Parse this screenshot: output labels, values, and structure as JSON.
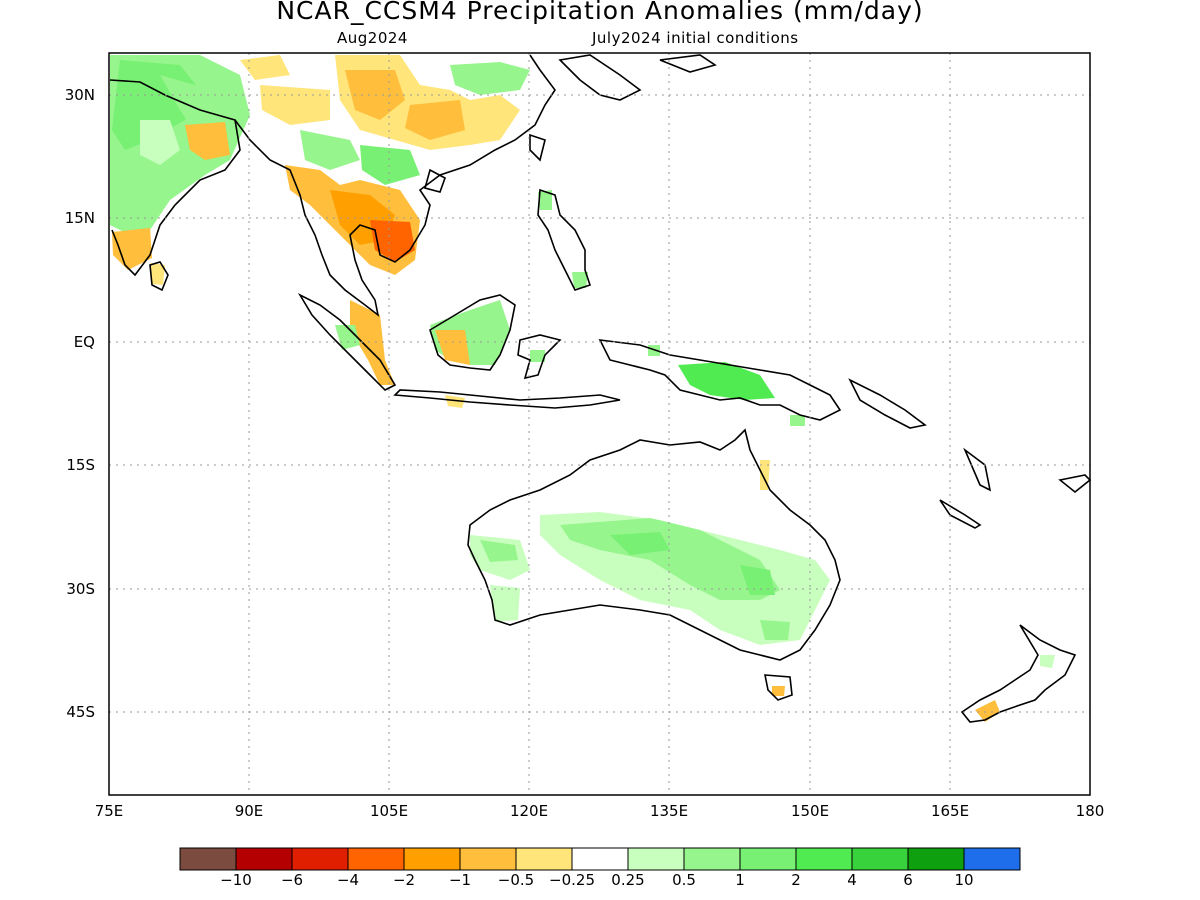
{
  "title": "NCAR_CCSM4 Precipitation Anomalies (mm/day)",
  "subtitle_left": "Aug2024",
  "subtitle_right": "July2024 initial conditions",
  "lat_labels": [
    "30N",
    "15N",
    "EQ",
    "15S",
    "30S",
    "45S"
  ],
  "lon_labels": [
    "75E",
    "90E",
    "105E",
    "120E",
    "135E",
    "150E",
    "165E",
    "180"
  ],
  "colorbar": {
    "colors": [
      "#7b4b40",
      "#b40000",
      "#e01e00",
      "#ff6400",
      "#ffa000",
      "#ffbe3c",
      "#ffe57a",
      "#ffffff",
      "#c8ffbe",
      "#96f58c",
      "#78f073",
      "#50eb50",
      "#37d23c",
      "#0fa00f",
      "#1e6eeb"
    ],
    "labels": [
      "-10",
      "-6",
      "-4",
      "-2",
      "-1",
      "-0.5",
      "-0.25",
      "0.25",
      "0.5",
      "1",
      "2",
      "4",
      "6",
      "10"
    ]
  }
}
